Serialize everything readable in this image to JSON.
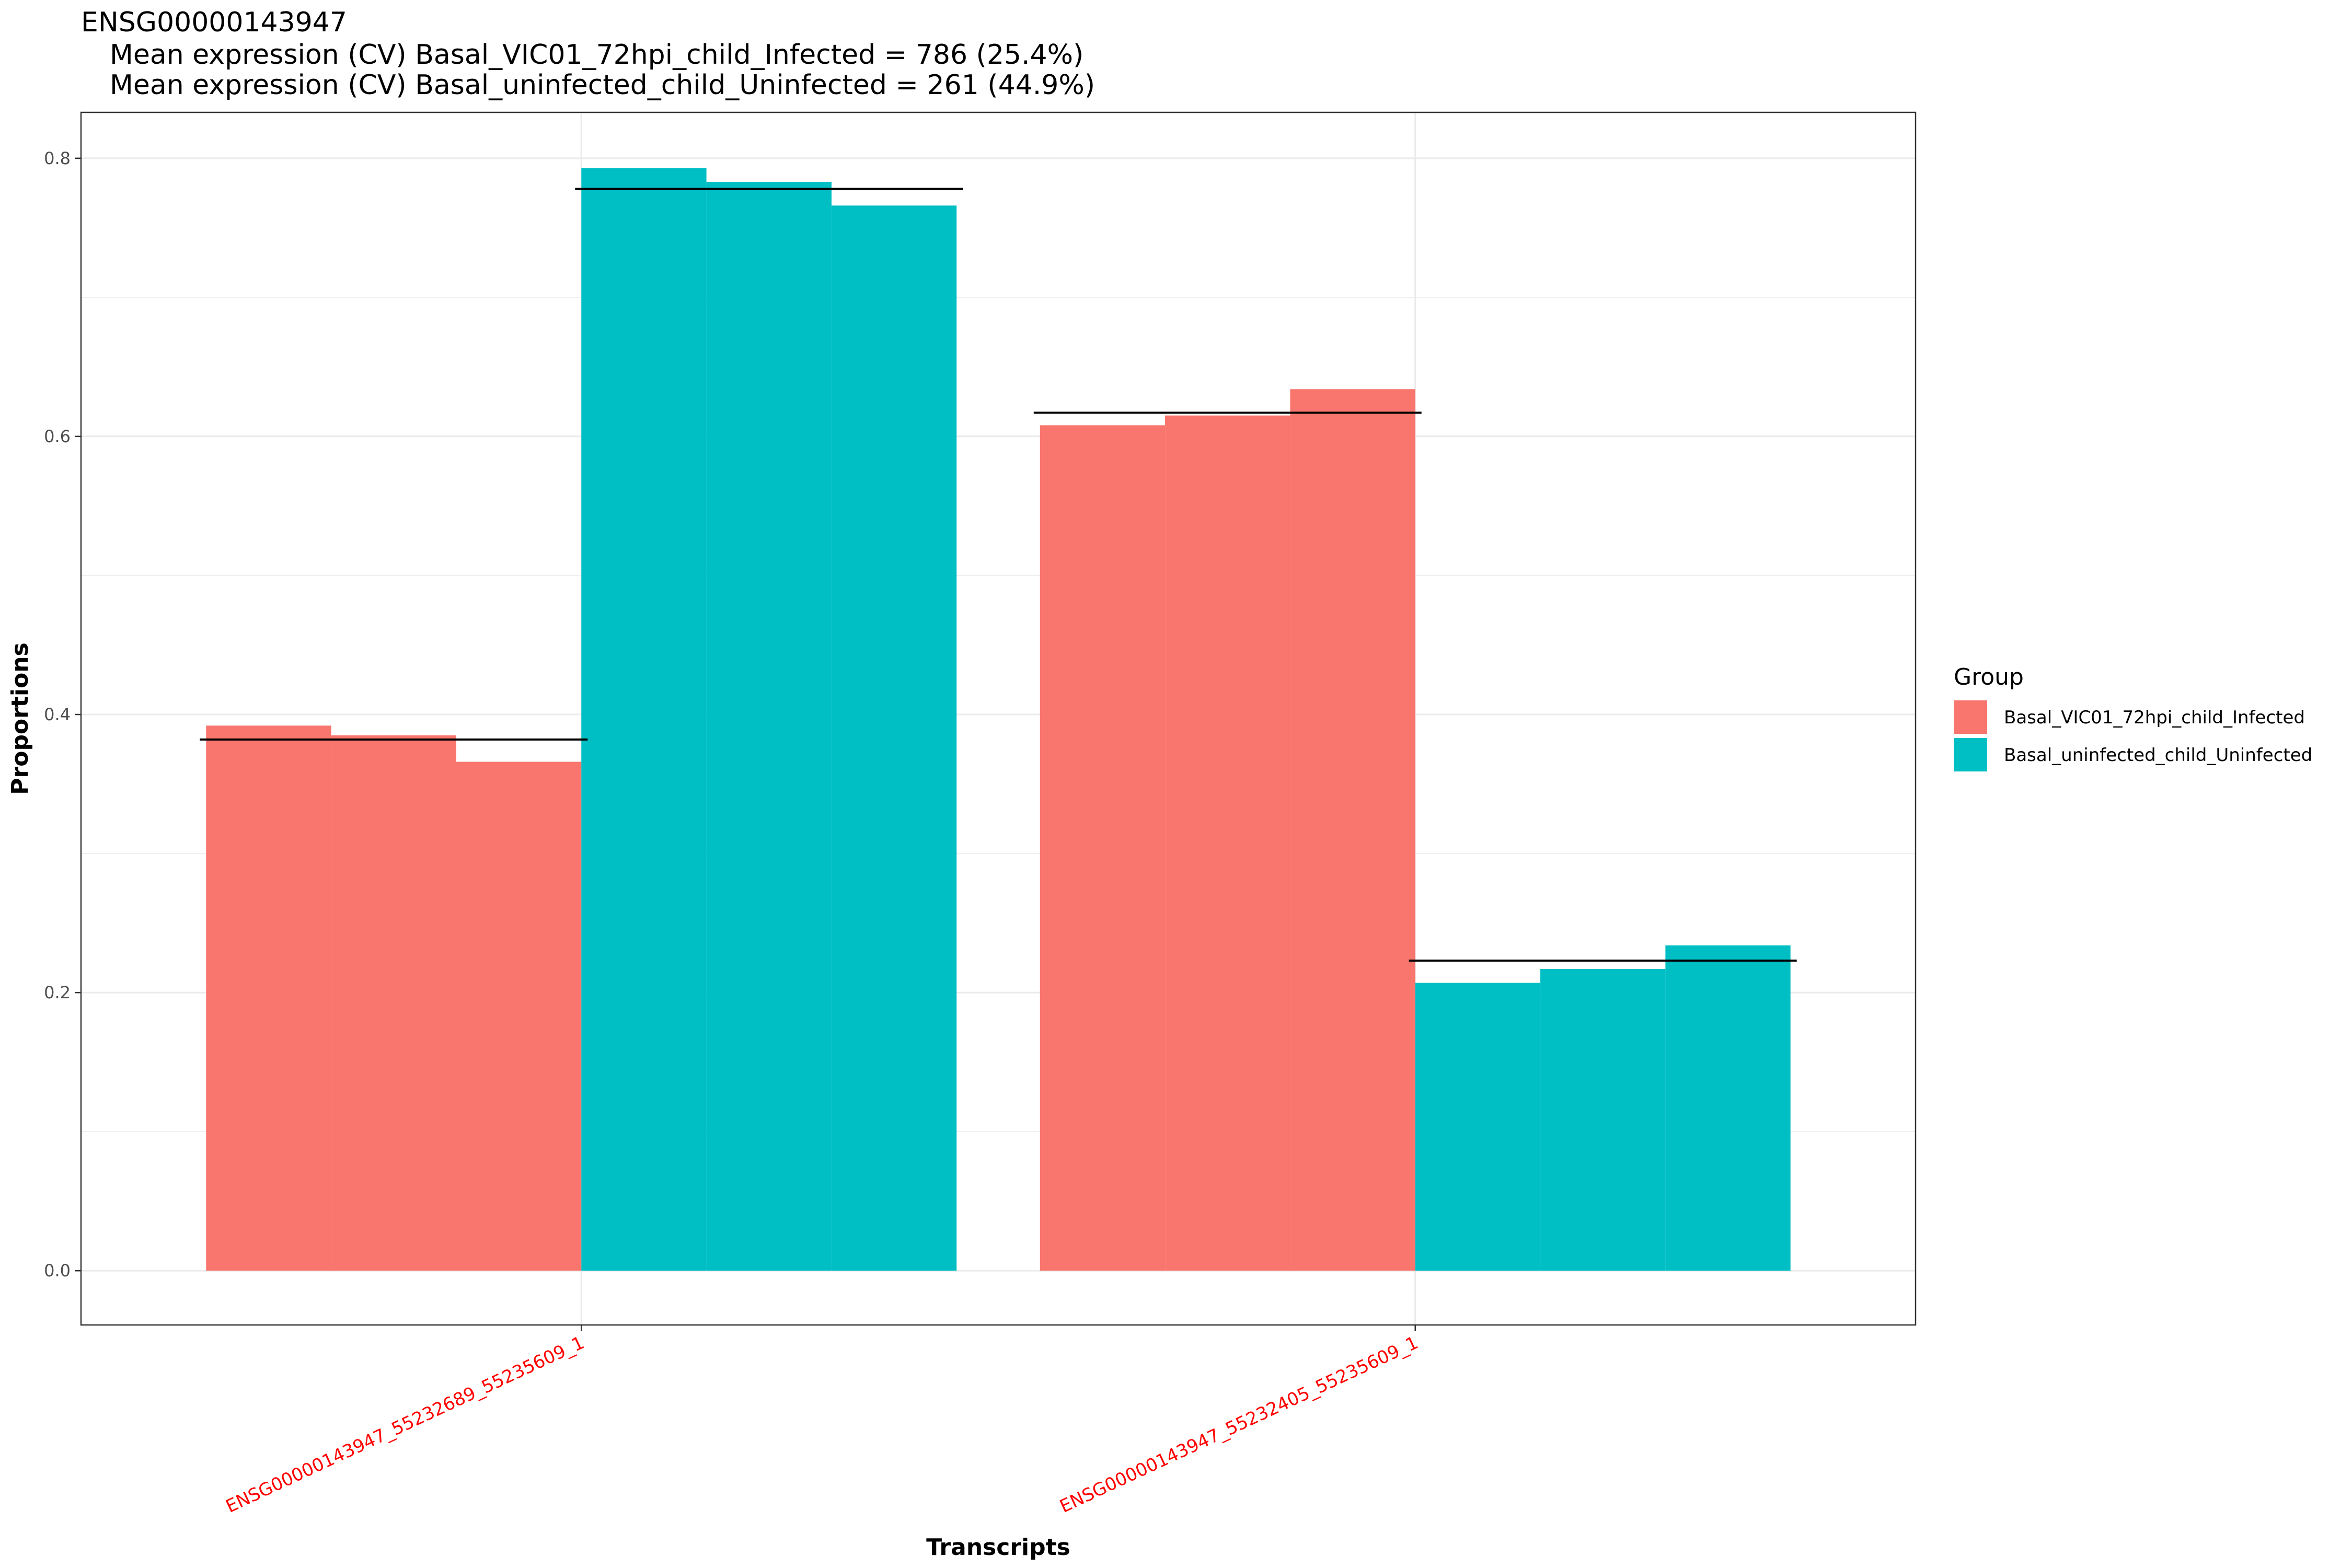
{
  "chart_data": {
    "type": "bar",
    "title": "ENSG00000143947",
    "subtitle_lines": [
      "Mean expression (CV) Basal_VIC01_72hpi_child_Infected = 786 (25.4%)",
      "Mean expression (CV) Basal_uninfected_child_Uninfected = 261 (44.9%)"
    ],
    "xlabel": "Transcripts",
    "ylabel": "Proportions",
    "ylim": [
      -0.039,
      0.833
    ],
    "y_ticks": [
      0.0,
      0.2,
      0.4,
      0.6,
      0.8
    ],
    "y_tick_labels": [
      "0.0",
      "0.2",
      "0.4",
      "0.6",
      "0.8"
    ],
    "grid": true,
    "categories": [
      "ENSG00000143947_55232689_55235609_1",
      "ENSG00000143947_55232405_55235609_1"
    ],
    "series": [
      {
        "name": "Basal_VIC01_72hpi_child_Infected",
        "color": "#F8766D",
        "replicates": [
          [
            0.392,
            0.385,
            0.366
          ],
          [
            0.608,
            0.615,
            0.634
          ]
        ],
        "means": [
          0.382,
          0.617
        ]
      },
      {
        "name": "Basal_uninfected_child_Uninfected",
        "color": "#00BFC4",
        "replicates": [
          [
            0.793,
            0.783,
            0.766
          ],
          [
            0.207,
            0.217,
            0.234
          ]
        ],
        "means": [
          0.778,
          0.223
        ]
      }
    ],
    "legend": {
      "title": "Group",
      "position": "right"
    },
    "colors": {
      "mean_line": "#000000",
      "x_tick_label": "#FF0000"
    }
  }
}
